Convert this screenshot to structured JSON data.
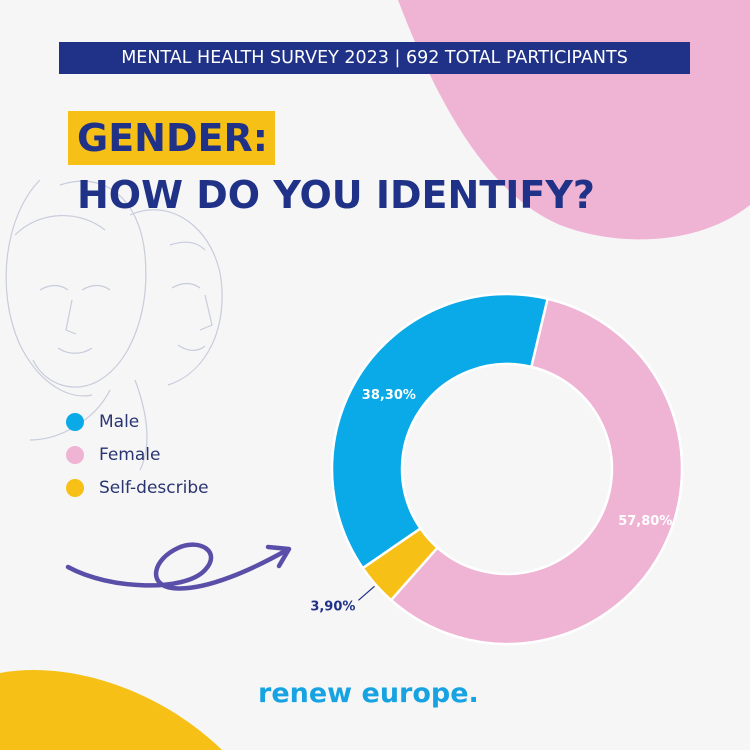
{
  "header": {
    "banner": "MENTAL HEALTH SURVEY 2023 | 692 TOTAL PARTICIPANTS",
    "title_highlight": "GENDER:",
    "title_question": "HOW DO YOU IDENTIFY?"
  },
  "colors": {
    "navy": "#1f3287",
    "male": "#0aa9e8",
    "female": "#efb3d4",
    "self_describe": "#f6c016",
    "brand": "#17a3e2"
  },
  "chart_data": {
    "type": "pie",
    "donut": true,
    "categories": [
      "Male",
      "Female",
      "Self-describe"
    ],
    "values": [
      38.3,
      57.8,
      3.9
    ],
    "labels": [
      "38,30%",
      "57,80%",
      "3,90%"
    ],
    "legend_position": "left"
  },
  "footer": {
    "brand": "renew europe."
  }
}
